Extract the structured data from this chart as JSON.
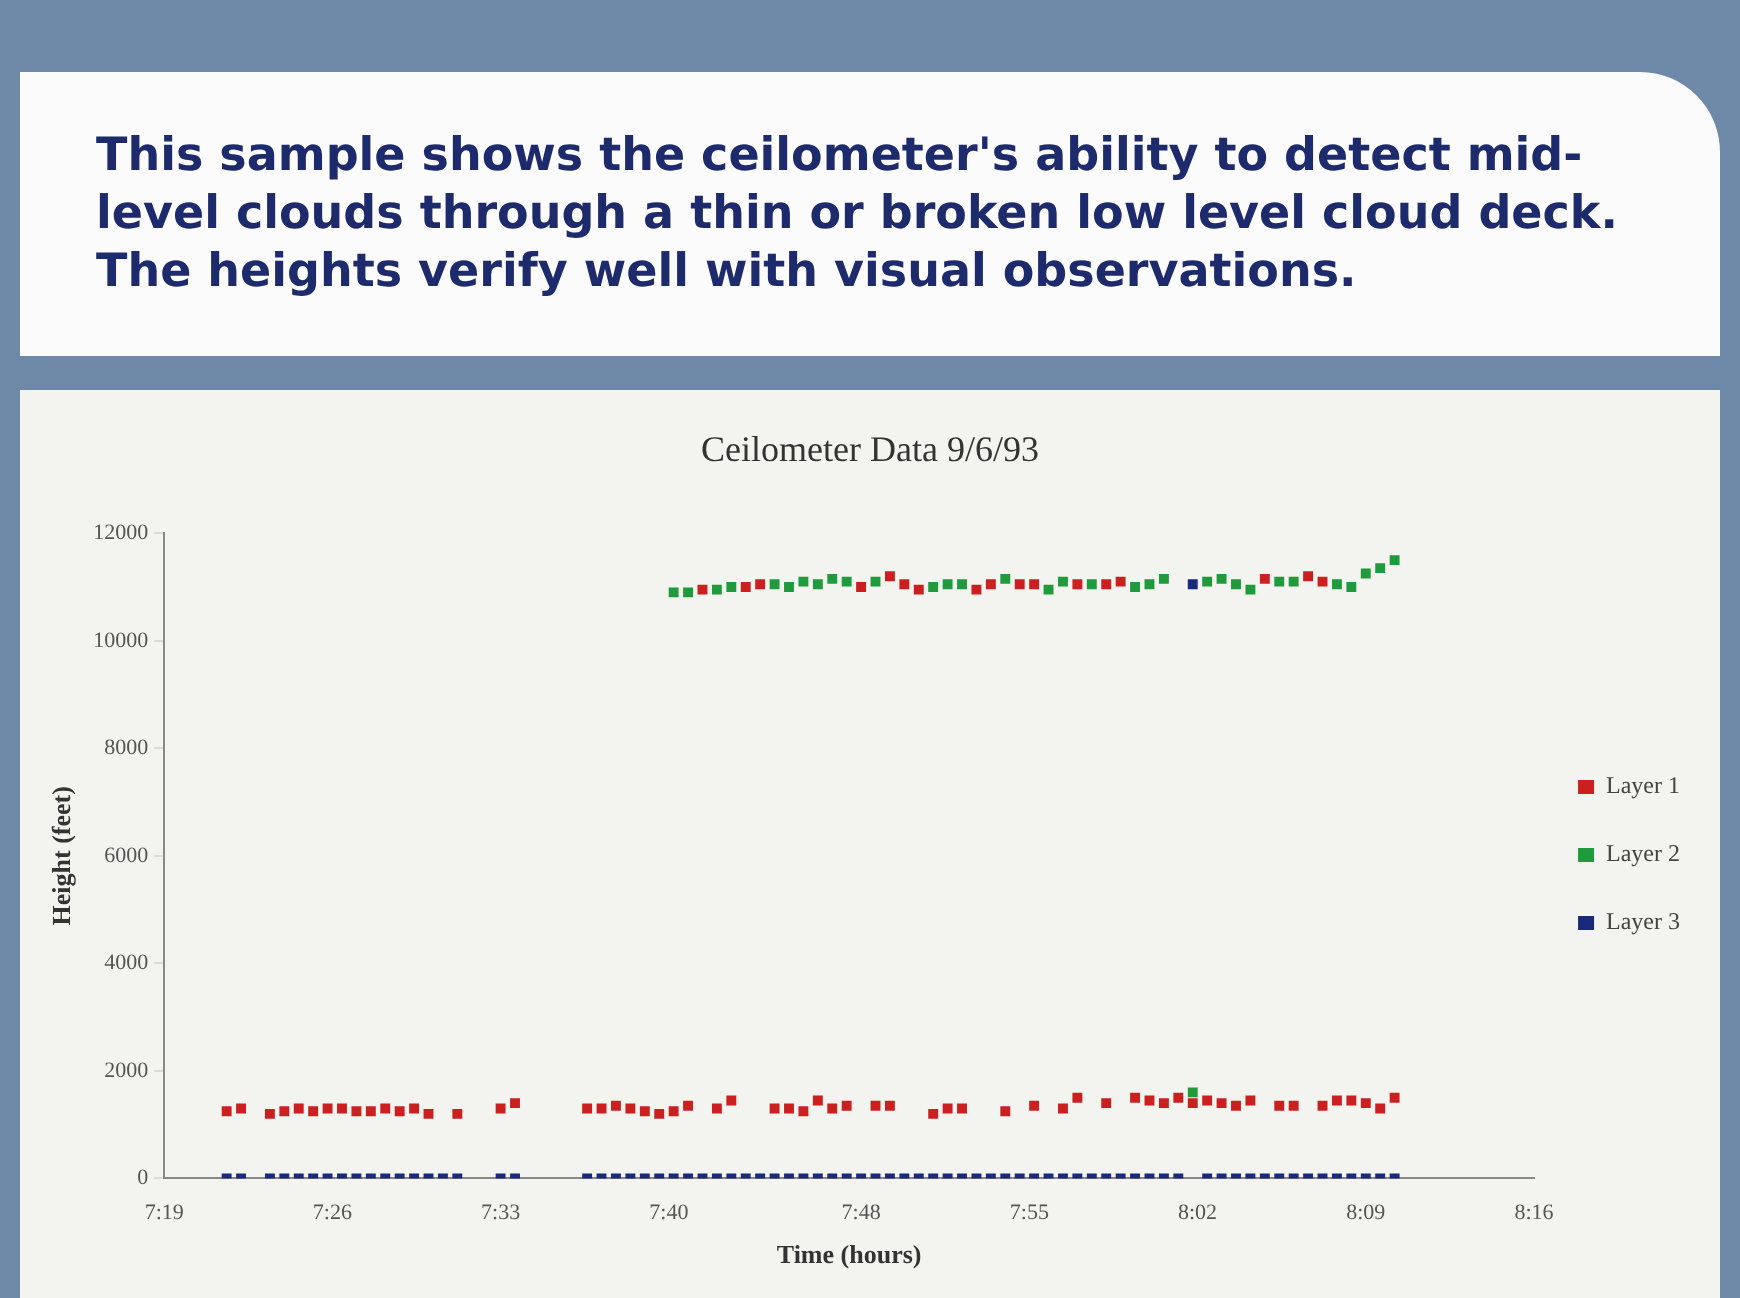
{
  "chart_data": {
    "type": "scatter",
    "title": "Ceilometer Data 9/6/93",
    "xlabel": "Time (hours)",
    "ylabel": "Height (feet)",
    "annotations": [
      "This sample shows the ceilometer's ability to detect mid-level clouds through a thin or broken low level cloud deck.  The heights verify well with visual observations."
    ],
    "xlim": [
      7.3167,
      8.2667
    ],
    "xticks": [
      {
        "value": 7.3167,
        "label": "7:19"
      },
      {
        "value": 7.4333,
        "label": "7:26"
      },
      {
        "value": 7.55,
        "label": "7:33"
      },
      {
        "value": 7.6667,
        "label": "7:40"
      },
      {
        "value": 7.8,
        "label": "7:48"
      },
      {
        "value": 7.9167,
        "label": "7:55"
      },
      {
        "value": 8.0333,
        "label": "8:02"
      },
      {
        "value": 8.15,
        "label": "8:09"
      },
      {
        "value": 8.2667,
        "label": "8:16"
      }
    ],
    "ylim": [
      0,
      12000
    ],
    "yticks": [
      0,
      2000,
      4000,
      6000,
      8000,
      10000,
      12000
    ],
    "grid": false,
    "legend": "right",
    "marker": "square",
    "series": [
      {
        "name": "Layer 1",
        "color": "#cc2020",
        "x": [
          7.36,
          7.37,
          7.39,
          7.4,
          7.41,
          7.42,
          7.43,
          7.44,
          7.45,
          7.46,
          7.47,
          7.48,
          7.49,
          7.5,
          7.52,
          7.55,
          7.56,
          7.61,
          7.62,
          7.63,
          7.64,
          7.65,
          7.66,
          7.67,
          7.68,
          7.7,
          7.71,
          7.74,
          7.75,
          7.76,
          7.77,
          7.78,
          7.79,
          7.81,
          7.82,
          7.85,
          7.86,
          7.87,
          7.9,
          7.92,
          7.94,
          7.95,
          7.97,
          7.99,
          8.0,
          8.01,
          8.02,
          8.03,
          8.04,
          8.05,
          8.06,
          8.07,
          8.09,
          8.1,
          8.12,
          8.13,
          8.14,
          8.15,
          8.16,
          8.17,
          7.69,
          7.72,
          7.73,
          7.8,
          7.82,
          7.83,
          7.84,
          7.88,
          7.89,
          7.91,
          7.92,
          7.95,
          7.97,
          7.98,
          8.08,
          8.11,
          8.12
        ],
        "values": [
          1250,
          1300,
          1200,
          1250,
          1300,
          1250,
          1300,
          1300,
          1250,
          1250,
          1300,
          1250,
          1300,
          1200,
          1200,
          1300,
          1400,
          1300,
          1300,
          1350,
          1300,
          1250,
          1200,
          1250,
          1350,
          1300,
          1450,
          1300,
          1300,
          1250,
          1450,
          1300,
          1350,
          1350,
          1350,
          1200,
          1300,
          1300,
          1250,
          1350,
          1300,
          1500,
          1400,
          1500,
          1450,
          1400,
          1500,
          1400,
          1450,
          1400,
          1350,
          1450,
          1350,
          1350,
          1350,
          1450,
          1450,
          1400,
          1300,
          1500,
          10950,
          11000,
          11050,
          11000,
          11200,
          11050,
          10950,
          10950,
          11050,
          11050,
          11050,
          11050,
          11050,
          11100,
          11150,
          11200,
          11100
        ]
      },
      {
        "name": "Layer 2",
        "color": "#1f9a3c",
        "x": [
          7.67,
          7.68,
          7.7,
          7.71,
          7.74,
          7.75,
          7.76,
          7.77,
          7.78,
          7.79,
          7.81,
          7.85,
          7.86,
          7.87,
          7.9,
          7.93,
          7.94,
          7.96,
          7.99,
          8.0,
          8.01,
          8.04,
          8.05,
          8.06,
          8.07,
          8.09,
          8.1,
          8.13,
          8.14,
          8.15,
          8.16,
          8.17,
          8.03
        ],
        "values": [
          10900,
          10900,
          10950,
          11000,
          11050,
          11000,
          11100,
          11050,
          11150,
          11100,
          11100,
          11000,
          11050,
          11050,
          11150,
          10950,
          11100,
          11050,
          11000,
          11050,
          11150,
          11100,
          11150,
          11050,
          10950,
          11100,
          11100,
          11050,
          11000,
          11250,
          11350,
          11500,
          1600
        ]
      },
      {
        "name": "Layer 3",
        "color": "#1a2a7a",
        "x": [
          7.36,
          7.37,
          7.39,
          7.4,
          7.41,
          7.42,
          7.43,
          7.44,
          7.45,
          7.46,
          7.47,
          7.48,
          7.49,
          7.5,
          7.51,
          7.52,
          7.55,
          7.56,
          7.61,
          7.62,
          7.63,
          7.64,
          7.65,
          7.66,
          7.67,
          7.68,
          7.69,
          7.7,
          7.71,
          7.72,
          7.73,
          7.74,
          7.75,
          7.76,
          7.77,
          7.78,
          7.79,
          7.8,
          7.81,
          7.82,
          7.83,
          7.84,
          7.85,
          7.86,
          7.87,
          7.88,
          7.89,
          7.9,
          7.91,
          7.92,
          7.93,
          7.94,
          7.95,
          7.96,
          7.97,
          7.98,
          7.99,
          8.0,
          8.01,
          8.02,
          8.03,
          8.04,
          8.05,
          8.06,
          8.07,
          8.08,
          8.09,
          8.1,
          8.11,
          8.12,
          8.13,
          8.14,
          8.15,
          8.16,
          8.17
        ],
        "values": [
          0,
          0,
          0,
          0,
          0,
          0,
          0,
          0,
          0,
          0,
          0,
          0,
          0,
          0,
          0,
          0,
          0,
          0,
          0,
          0,
          0,
          0,
          0,
          0,
          0,
          0,
          0,
          0,
          0,
          0,
          0,
          0,
          0,
          0,
          0,
          0,
          0,
          0,
          0,
          0,
          0,
          0,
          0,
          0,
          0,
          0,
          0,
          0,
          0,
          0,
          0,
          0,
          0,
          0,
          0,
          0,
          0,
          0,
          0,
          0,
          11050,
          0,
          0,
          0,
          0,
          0,
          0,
          0,
          0,
          0,
          0,
          0,
          0,
          0,
          0
        ]
      }
    ]
  }
}
